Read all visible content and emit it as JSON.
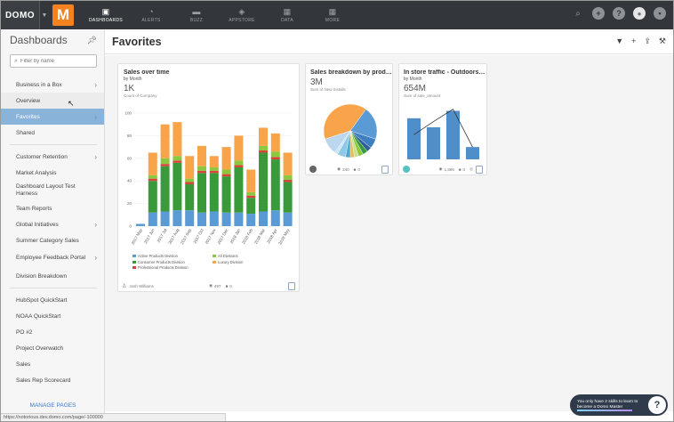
{
  "topbar": {
    "logo": "DOMO",
    "brand_letter": "M",
    "nav": [
      {
        "label": "DASHBOARDS",
        "icon": "dashboard-icon",
        "glyph": "▣"
      },
      {
        "label": "ALERTS",
        "icon": "bell-icon",
        "glyph": "◔"
      },
      {
        "label": "BUZZ",
        "icon": "chat-icon",
        "glyph": "▬"
      },
      {
        "label": "APPSTORE",
        "icon": "appstore-icon",
        "glyph": "◈"
      },
      {
        "label": "DATA",
        "icon": "data-icon",
        "glyph": "▦"
      },
      {
        "label": "MORE",
        "icon": "more-icon",
        "glyph": "▦"
      }
    ],
    "right_icons": [
      "search-icon",
      "add-icon",
      "help-icon",
      "avatar",
      "chat-icon"
    ]
  },
  "sidebar": {
    "title": "Dashboards",
    "filter_placeholder": "Filter by name",
    "groups": [
      [
        {
          "label": "Business in a Box",
          "chevron": true
        },
        {
          "label": "Overview",
          "state": "hover"
        },
        {
          "label": "Favorites",
          "chevron": true,
          "state": "active"
        },
        {
          "label": "Shared"
        }
      ],
      [
        {
          "label": "Customer Retention",
          "chevron": true
        },
        {
          "label": "Market Analysis"
        },
        {
          "label": "Dashboard Layout Test Harness",
          "two": true
        },
        {
          "label": "Team Reports"
        },
        {
          "label": "Global Initiatives",
          "chevron": true
        },
        {
          "label": "Summer Category Sales"
        },
        {
          "label": "Employee Feedback Portal",
          "chevron": true,
          "two": true
        },
        {
          "label": "Division Breakdown"
        }
      ],
      [
        {
          "label": "HubSpot QuickStart"
        },
        {
          "label": "NOAA QuickStart"
        },
        {
          "label": "PO #2"
        },
        {
          "label": "Project Overwatch"
        },
        {
          "label": "Sales"
        },
        {
          "label": "Sales Rep Scorecard"
        }
      ]
    ],
    "manage_label": "MANAGE PAGES",
    "status_url": "https://notorious.dev.domo.com/page/-100000"
  },
  "header": {
    "title": "Favorites"
  },
  "cards": {
    "sales_time": {
      "title": "Sales over time",
      "subtitle": "by Month",
      "value": "1K",
      "note": "Count of Company",
      "owner": "Josh Williams",
      "views": "497",
      "comments": "0"
    },
    "sales_product": {
      "title": "Sales breakdown by prod…",
      "subtitle": "",
      "value": "3M",
      "note": "Sum of New Installs",
      "views": "240",
      "comments": "0"
    },
    "instore": {
      "title": "In store traffic - Outdoors…",
      "subtitle": "by Month",
      "value": "654M",
      "note": "Sum of sale_amount",
      "views": "1,896",
      "comments": "0"
    }
  },
  "chart_data": [
    {
      "type": "bar",
      "stacked": true,
      "categories": [
        "2017 May",
        "2017 Jun",
        "2017 Jul",
        "2017 Aug",
        "2017 Sep",
        "2017 Oct",
        "2017 Nov",
        "2017 Dec",
        "2018 Jan",
        "2018 Feb",
        "2018 Mar",
        "2018 Apr",
        "2018 May"
      ],
      "ylim": [
        0,
        100
      ],
      "yticks": [
        0,
        20,
        40,
        60,
        80,
        100
      ],
      "series": [
        {
          "name": "Active Products Division",
          "color": "#5b9bd5",
          "values": [
            2,
            12,
            13,
            14,
            14,
            12,
            13,
            12,
            12,
            11,
            13,
            14,
            12
          ]
        },
        {
          "name": "Consumer Products Division",
          "color": "#3a9a3a",
          "values": [
            0,
            28,
            40,
            42,
            23,
            35,
            34,
            32,
            40,
            14,
            52,
            45,
            27
          ]
        },
        {
          "name": "Professional Products Division",
          "color": "#d6443a",
          "values": [
            0,
            2,
            2,
            2,
            2,
            2,
            2,
            2,
            2,
            2,
            2,
            2,
            2
          ]
        },
        {
          "name": "All Divisions",
          "color": "#8dc63f",
          "values": [
            0,
            3,
            5,
            4,
            3,
            4,
            3,
            4,
            4,
            3,
            4,
            5,
            4
          ]
        },
        {
          "name": "Luxury Division",
          "color": "#f7a44a",
          "values": [
            0,
            20,
            30,
            30,
            20,
            18,
            10,
            20,
            22,
            20,
            16,
            16,
            20
          ]
        }
      ]
    },
    {
      "type": "pie",
      "values": [
        40,
        20,
        6,
        3,
        3,
        3,
        2.5,
        2.5,
        3,
        5,
        2,
        10
      ],
      "colors": [
        "#f7a44a",
        "#5b9bd5",
        "#3f7fc0",
        "#2f5f99",
        "#3a9a3a",
        "#8dc63f",
        "#c7e08f",
        "#e0c050",
        "#50a8d8",
        "#8ec9e8",
        "#cde6f5",
        "#bcd6ee"
      ]
    },
    {
      "type": "bar",
      "categories": [
        "1",
        "2",
        "3",
        "4"
      ],
      "values": [
        100,
        78,
        118,
        30
      ],
      "line_values": [
        60,
        92,
        122,
        30
      ],
      "ylim": [
        0,
        130
      ]
    }
  ],
  "help": {
    "text": "You only have 2 skills to learn to become a Domo Master",
    "icon": "?"
  }
}
